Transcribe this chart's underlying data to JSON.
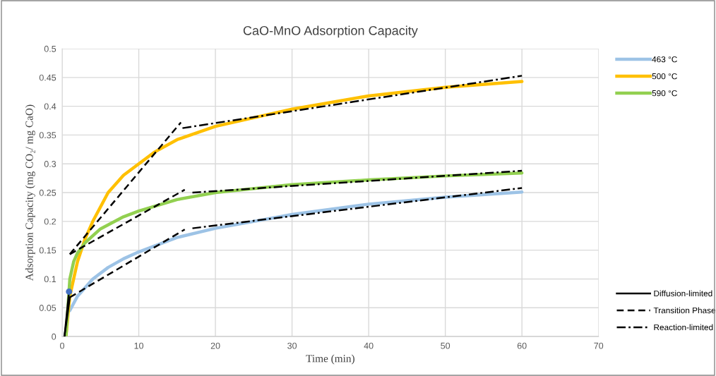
{
  "chart_data": {
    "type": "line",
    "title": "CaO-MnO Adsorption Capacity",
    "xlabel": "Time (min)",
    "ylabel": "Adsorption Capacity (mg CO₂/ mg CaO)",
    "xlim": [
      0,
      70
    ],
    "xticks": [
      0,
      10,
      20,
      30,
      40,
      50,
      60,
      70
    ],
    "ylim": [
      0,
      0.5
    ],
    "yticks": [
      0,
      0.05,
      0.1,
      0.15,
      0.2,
      0.25,
      0.3,
      0.35,
      0.4,
      0.45,
      0.5
    ],
    "grid": true,
    "legend": "right",
    "marker": "none",
    "series": [
      {
        "name": "463 °C",
        "color": "#9dc3e6",
        "line_style": "solid",
        "x": [
          1,
          2,
          4,
          6,
          8,
          10,
          15,
          20,
          25,
          30,
          40,
          50,
          60
        ],
        "values": [
          0.045,
          0.07,
          0.1,
          0.12,
          0.135,
          0.147,
          0.172,
          0.188,
          0.2,
          0.212,
          0.23,
          0.242,
          0.251
        ]
      },
      {
        "name": "500 °C",
        "color": "#ffc000",
        "line_style": "solid",
        "x": [
          0.5,
          1,
          1.5,
          2,
          3,
          4,
          6,
          8,
          10,
          12,
          15,
          20,
          25,
          30,
          40,
          50,
          60
        ],
        "values": [
          0,
          0.07,
          0.1,
          0.13,
          0.17,
          0.2,
          0.25,
          0.28,
          0.3,
          0.32,
          0.342,
          0.365,
          0.38,
          0.395,
          0.418,
          0.433,
          0.443
        ]
      },
      {
        "name": "590 °C",
        "color": "#92d050",
        "line_style": "solid",
        "x": [
          0.5,
          1,
          1.5,
          2,
          3,
          5,
          8,
          10,
          15,
          20,
          30,
          40,
          50,
          60
        ],
        "values": [
          0,
          0.1,
          0.13,
          0.145,
          0.163,
          0.187,
          0.208,
          0.218,
          0.238,
          0.25,
          0.264,
          0.272,
          0.279,
          0.284
        ]
      },
      {
        "name": "Diffusion-limited",
        "color": "#000000",
        "line_style": "solid",
        "x": [
          0.3,
          1
        ],
        "values": [
          0,
          0.068
        ]
      },
      {
        "name": "Transition Phase",
        "color": "#000000",
        "line_style": "dashed",
        "x": [
          1,
          16
        ],
        "values": [
          0.068,
          0.186
        ]
      },
      {
        "name": "Reaction-limited",
        "color": "#000000",
        "line_style": "dashdot",
        "x": [
          17,
          60
        ],
        "values": [
          0.188,
          0.258
        ]
      },
      {
        "color": "#000000",
        "line_style": "solid",
        "x": [
          0.3,
          0.9
        ],
        "values": [
          0,
          0.078
        ]
      },
      {
        "color": "#000000",
        "line_style": "dashed",
        "x": [
          1,
          15.5
        ],
        "values": [
          0.143,
          0.372
        ]
      },
      {
        "color": "#000000",
        "line_style": "dashdot",
        "x": [
          15.7,
          60
        ],
        "values": [
          0.362,
          0.453
        ]
      },
      {
        "color": "#000000",
        "line_style": "dashed",
        "x": [
          1,
          16
        ],
        "values": [
          0.143,
          0.255
        ]
      },
      {
        "color": "#000000",
        "line_style": "dashdot",
        "x": [
          17,
          60
        ],
        "values": [
          0.25,
          0.288
        ]
      },
      {
        "type": "scatter",
        "color": "#4472c4",
        "x": [
          0.9
        ],
        "values": [
          0.078
        ]
      }
    ]
  }
}
